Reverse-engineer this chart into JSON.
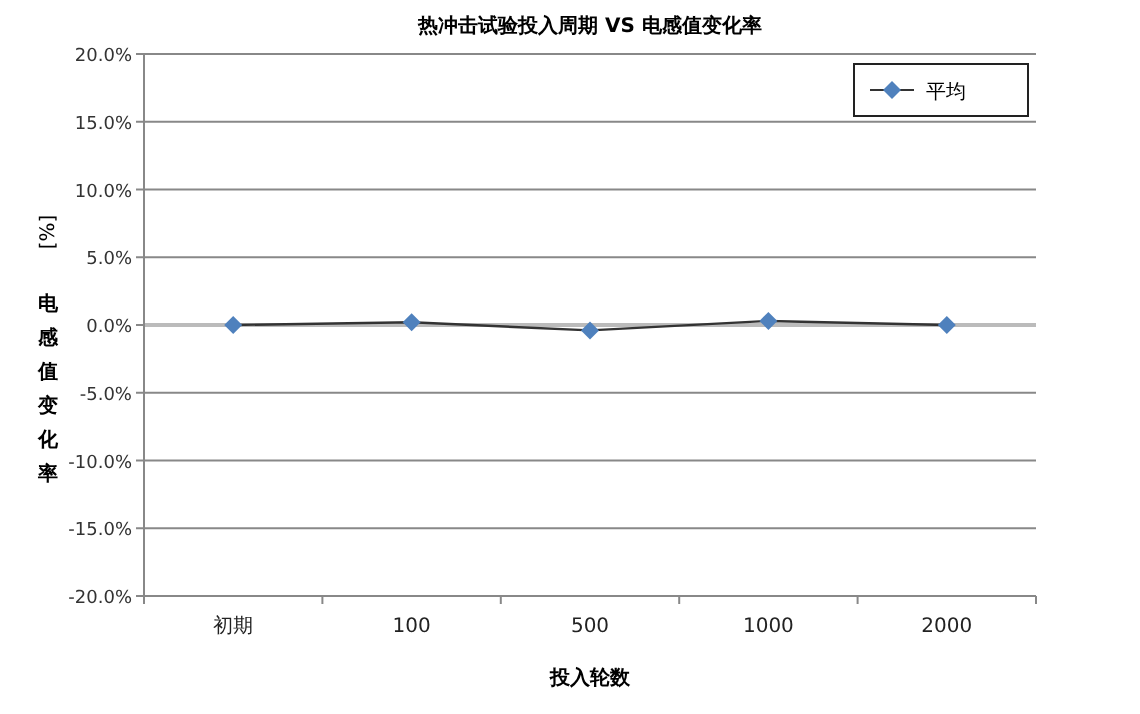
{
  "chart_data": {
    "type": "line",
    "title": "热冲击试验投入周期 VS 电感值变化率",
    "xlabel": "投入轮数",
    "ylabel": "电感值变化率",
    "y2label": "[%]",
    "categories": [
      "初期",
      "100",
      "500",
      "1000",
      "2000"
    ],
    "series": [
      {
        "name": "平均",
        "color": "#4f81bd",
        "values": [
          0.0,
          0.2,
          -0.4,
          0.3,
          0.0
        ]
      }
    ],
    "ylim": [
      -20,
      20
    ],
    "yticks": [
      {
        "value": -20,
        "label": "-20.0%"
      },
      {
        "value": -15,
        "label": "-15.0%"
      },
      {
        "value": -10,
        "label": "-10.0%"
      },
      {
        "value": -5,
        "label": "-5.0%"
      },
      {
        "value": 0,
        "label": "0.0%"
      },
      {
        "value": 5,
        "label": "5.0%"
      },
      {
        "value": 10,
        "label": "10.0%"
      },
      {
        "value": 15,
        "label": "15.0%"
      },
      {
        "value": 20,
        "label": "20.0%"
      }
    ],
    "grid": "y",
    "legend": "top right",
    "marker": "diamond",
    "line_style": "solid"
  }
}
